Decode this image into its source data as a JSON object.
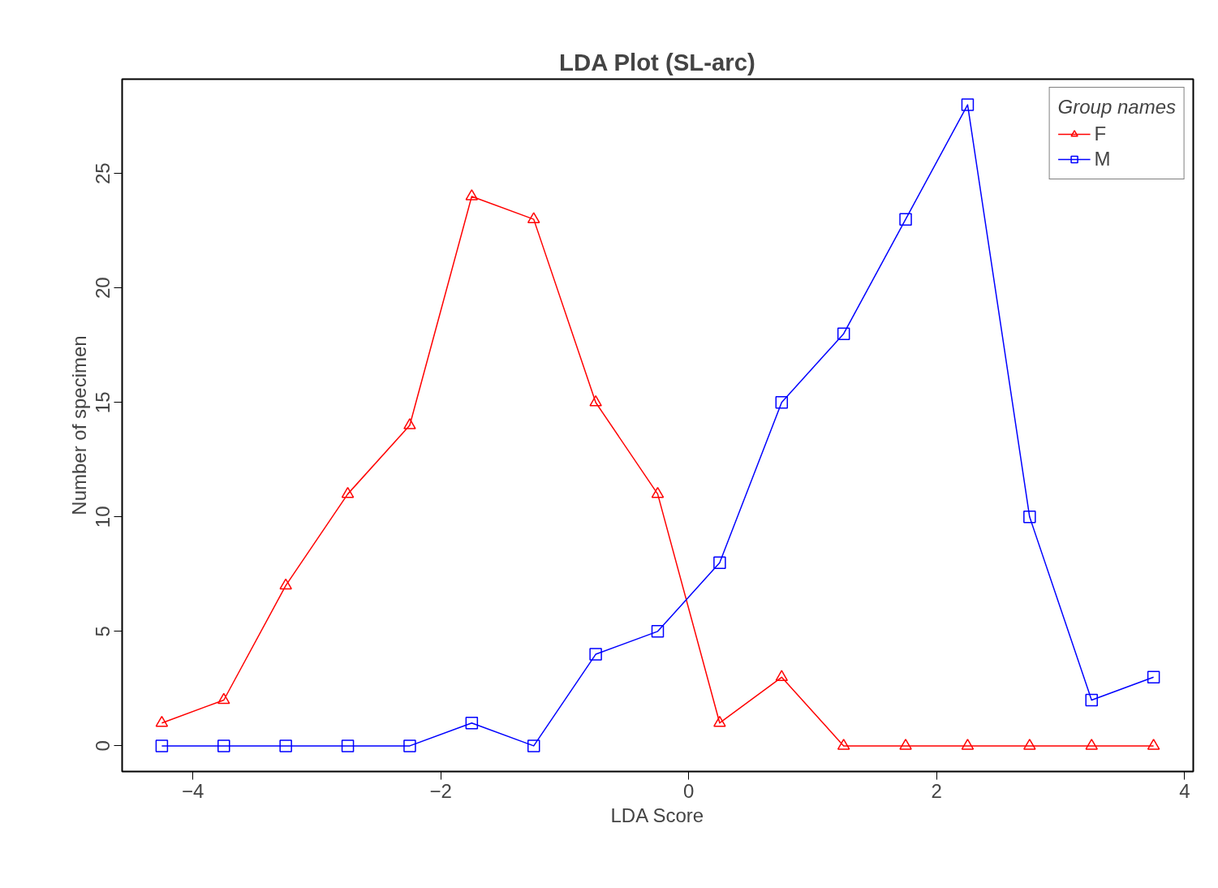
{
  "chart_data": {
    "type": "line",
    "title": "LDA Plot (SL-arc)",
    "xlabel": "LDA Score",
    "ylabel": "Number of specimen",
    "legend_title": "Group names",
    "legend": "top right",
    "grid": false,
    "x": [
      -4.25,
      -3.75,
      -3.25,
      -2.75,
      -2.25,
      -1.75,
      -1.25,
      -0.75,
      -0.25,
      0.25,
      0.75,
      1.25,
      1.75,
      2.25,
      2.75,
      3.25,
      3.75
    ],
    "series": [
      {
        "name": "F",
        "color": "#ff0000",
        "marker": "triangle",
        "values": [
          1,
          2,
          7,
          11,
          14,
          24,
          23,
          15,
          11,
          1,
          3,
          0,
          0,
          0,
          0,
          0,
          0
        ]
      },
      {
        "name": "M",
        "color": "#0000ff",
        "marker": "square",
        "values": [
          0,
          0,
          0,
          0,
          0,
          1,
          0,
          4,
          5,
          8,
          15,
          18,
          23,
          28,
          10,
          2,
          3
        ]
      }
    ],
    "xlim": [
      -4.57,
      4.07
    ],
    "ylim": [
      -1.12,
      29.12
    ],
    "xticks": [
      -4,
      -2,
      0,
      2,
      4
    ],
    "yticks": [
      0,
      5,
      10,
      15,
      20,
      25
    ]
  }
}
